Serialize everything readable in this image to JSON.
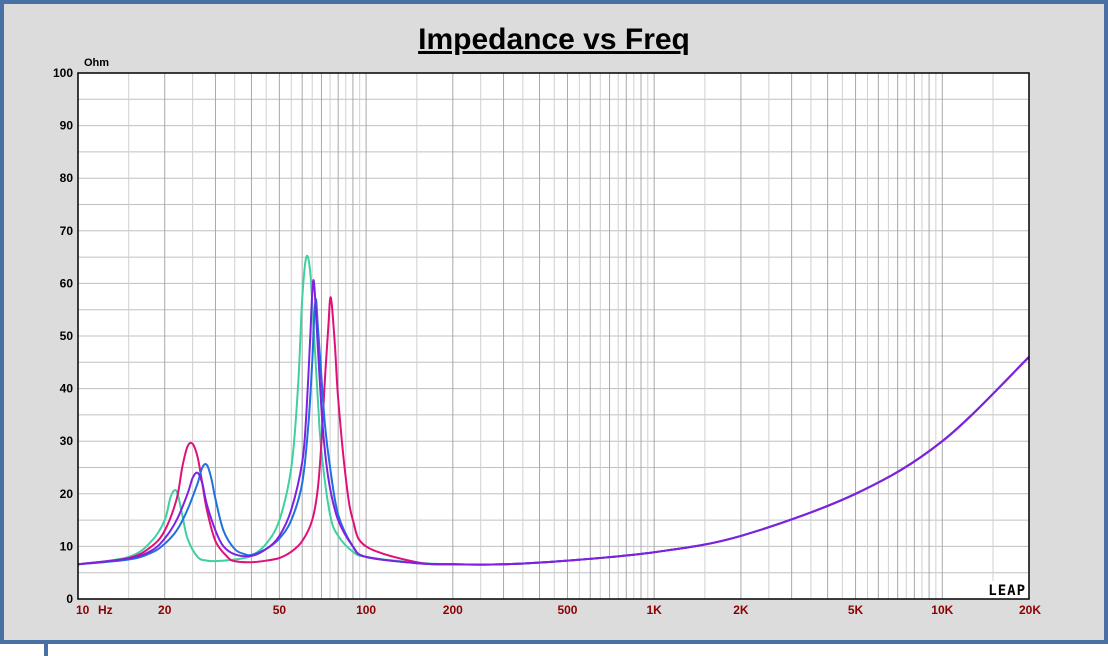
{
  "chart_data": {
    "type": "line",
    "title": "Impedance vs Freq",
    "y_unit": "Ohm",
    "x_unit": "Hz",
    "x_scale": "log",
    "xlim": [
      10,
      20000
    ],
    "ylim": [
      0,
      100
    ],
    "grid": true,
    "y_ticks": [
      "0",
      "10",
      "20",
      "30",
      "40",
      "50",
      "60",
      "70",
      "80",
      "90",
      "100"
    ],
    "x_ticks": [
      {
        "value": 10,
        "label": "10"
      },
      {
        "value": 20,
        "label": "20"
      },
      {
        "value": 50,
        "label": "50"
      },
      {
        "value": 100,
        "label": "100"
      },
      {
        "value": 200,
        "label": "200"
      },
      {
        "value": 500,
        "label": "500"
      },
      {
        "value": 1000,
        "label": "1K"
      },
      {
        "value": 2000,
        "label": "2K"
      },
      {
        "value": 5000,
        "label": "5K"
      },
      {
        "value": 10000,
        "label": "10K"
      },
      {
        "value": 20000,
        "label": "20K"
      }
    ],
    "watermark": "LEAP",
    "series": [
      {
        "color": "#40d0a0",
        "x": [
          10,
          15,
          18,
          20,
          21,
          22,
          23,
          24,
          26,
          28,
          30,
          35,
          40,
          45,
          50,
          55,
          58,
          60,
          62,
          64,
          66,
          68,
          70,
          75,
          80,
          90,
          100,
          150,
          200,
          300,
          500,
          1000,
          2000,
          5000,
          10000,
          20000
        ],
        "y": [
          6.6,
          8,
          11,
          15,
          19.5,
          20.5,
          16,
          11.5,
          8,
          7.3,
          7.2,
          7.5,
          8.2,
          10.5,
          15,
          25,
          40,
          57,
          65,
          62,
          50,
          38,
          28,
          16,
          12,
          9,
          8,
          6.9,
          6.6,
          6.6,
          7.3,
          8.9,
          12,
          20,
          30,
          46
        ]
      },
      {
        "color": "#e0107a",
        "x": [
          10,
          15,
          18,
          20,
          22,
          23,
          24,
          25,
          26,
          27,
          28,
          30,
          33,
          35,
          40,
          45,
          50,
          55,
          60,
          65,
          68,
          70,
          72,
          74,
          75,
          76,
          78,
          80,
          85,
          90,
          100,
          150,
          200,
          300,
          500,
          1000,
          2000,
          5000,
          10000,
          20000
        ],
        "y": [
          6.6,
          7.8,
          10,
          13,
          19,
          25,
          29,
          29.5,
          27,
          22,
          17,
          11,
          8,
          7.2,
          7,
          7.3,
          7.8,
          9,
          11,
          15,
          21,
          30,
          42,
          52,
          57,
          56,
          48,
          38,
          23,
          15,
          10,
          7,
          6.6,
          6.6,
          7.3,
          8.9,
          12,
          20,
          30,
          46
        ]
      },
      {
        "color": "#2070e0",
        "x": [
          10,
          15,
          18,
          20,
          22,
          24,
          26,
          27,
          28,
          29,
          30,
          32,
          35,
          38,
          40,
          45,
          50,
          55,
          60,
          63,
          65,
          66,
          67,
          68,
          70,
          72,
          75,
          80,
          90,
          100,
          150,
          200,
          300,
          500,
          1000,
          2000,
          5000,
          10000,
          20000
        ],
        "y": [
          6.6,
          7.5,
          8.8,
          10.5,
          13,
          17,
          22,
          25,
          25.5,
          23,
          19,
          13,
          9.5,
          8.5,
          8.4,
          9.5,
          11.5,
          15,
          22,
          33,
          45,
          53,
          57,
          52,
          42,
          33,
          25,
          16,
          10,
          8,
          6.8,
          6.6,
          6.6,
          7.3,
          8.9,
          12,
          20,
          30,
          46
        ]
      },
      {
        "color": "#8020e0",
        "x": [
          10,
          15,
          18,
          20,
          22,
          24,
          25,
          26,
          27,
          28,
          30,
          32,
          35,
          40,
          45,
          50,
          55,
          60,
          62,
          64,
          65,
          66,
          68,
          70,
          72,
          75,
          80,
          90,
          100,
          150,
          200,
          300,
          500,
          1000,
          2000,
          5000,
          10000,
          20000
        ],
        "y": [
          6.6,
          7.7,
          9.2,
          11.5,
          15,
          20,
          23,
          24,
          22,
          18,
          13,
          10,
          8.5,
          8.2,
          9.5,
          12,
          17,
          26,
          35,
          50,
          58,
          60,
          48,
          36,
          28,
          21,
          15,
          10,
          8,
          6.8,
          6.6,
          6.6,
          7.3,
          8.9,
          12,
          20,
          30,
          46
        ]
      }
    ]
  }
}
